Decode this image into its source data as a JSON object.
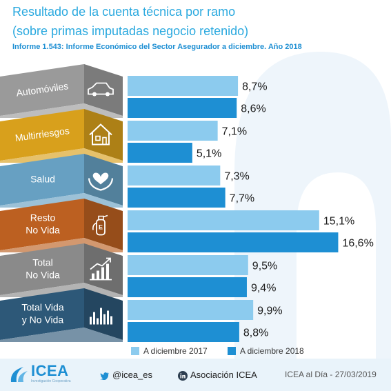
{
  "header": {
    "title": "Resultado de la cuenta técnica por ramo",
    "subtitle": "(sobre primas imputadas negocio retenido)",
    "source": "Informe 1.543: Informe Económico del Sector Asegurador a diciembre. Año 2018"
  },
  "chart_data": {
    "type": "bar",
    "orientation": "horizontal",
    "categories": [
      {
        "lines": [
          "Automóviles"
        ],
        "color": "#9a9a9a",
        "icon": "car-icon",
        "rotated": true
      },
      {
        "lines": [
          "Multirriesgos"
        ],
        "color": "#d8a01c",
        "icon": "house-icon",
        "rotated": true
      },
      {
        "lines": [
          "Salud"
        ],
        "color": "#67a0c2",
        "icon": "heart-hands-icon",
        "rotated": false
      },
      {
        "lines": [
          "Resto",
          "No Vida"
        ],
        "color": "#bc6021",
        "icon": "fire-extinguisher-icon",
        "rotated": false
      },
      {
        "lines": [
          "Total",
          "No Vida"
        ],
        "color": "#8a8a8a",
        "icon": "growth-chart-icon",
        "rotated": false
      },
      {
        "lines": [
          "Total Vida",
          "y No Vida"
        ],
        "color": "#2d5878",
        "icon": "bar-chart-icon",
        "rotated": false
      }
    ],
    "series": [
      {
        "name": "A diciembre 2017",
        "color": "#8ccbee",
        "values": [
          8.7,
          7.1,
          7.3,
          15.1,
          9.5,
          9.9
        ],
        "labels": [
          "8,7%",
          "7,1%",
          "7,3%",
          "15,1%",
          "9,5%",
          "9,9%"
        ]
      },
      {
        "name": "A diciembre 2018",
        "color": "#1e8fd3",
        "values": [
          8.6,
          5.1,
          7.7,
          16.6,
          9.4,
          8.8
        ],
        "labels": [
          "8,6%",
          "5,1%",
          "7,7%",
          "16,6%",
          "9,4%",
          "8,8%"
        ]
      }
    ]
  },
  "footer": {
    "logo": "ICEA",
    "logo_tagline": "Investigación Cooperativa",
    "twitter": "@icea_es",
    "linkedin": "Asociación ICEA",
    "date": "ICEA al Día - 27/03/2019"
  }
}
